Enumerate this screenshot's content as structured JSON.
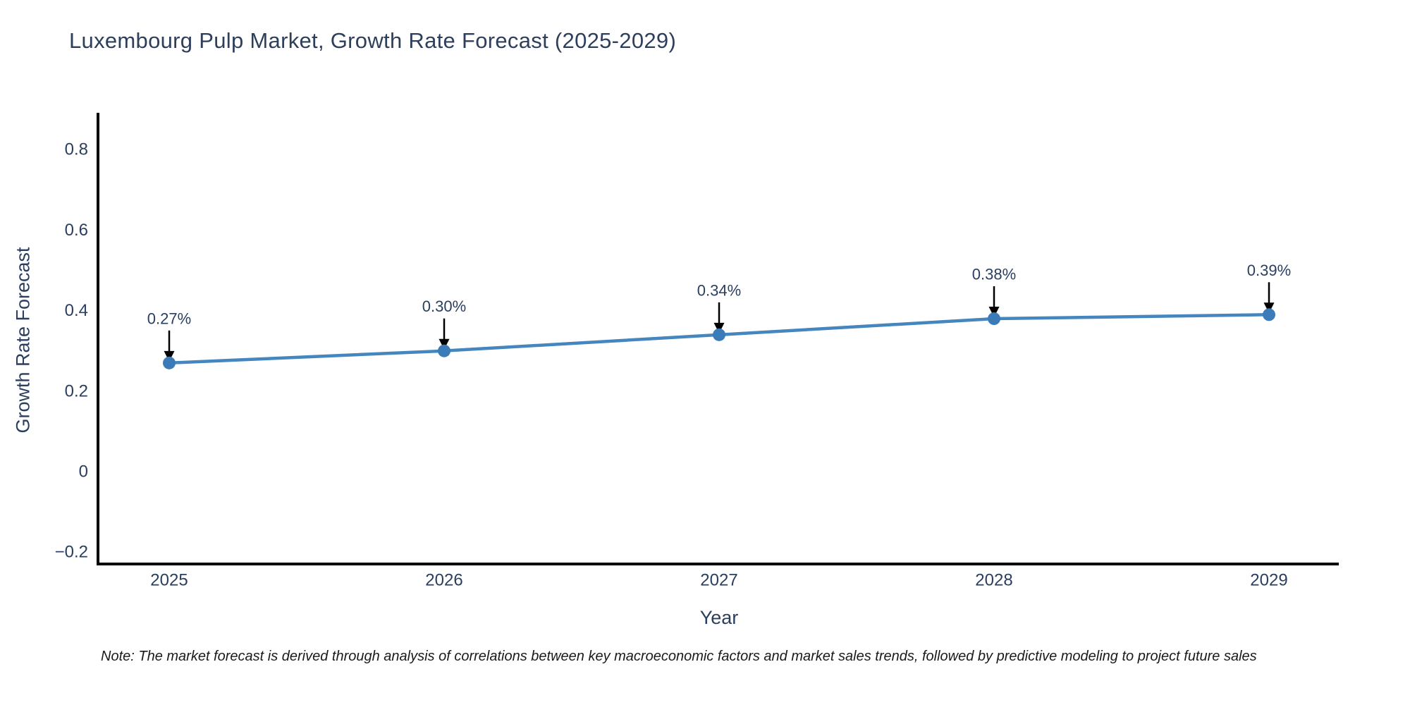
{
  "title": "Luxembourg Pulp Market, Growth Rate Forecast (2025-2029)",
  "footnote": "Note: The market forecast is derived through analysis of correlations between key macroeconomic factors and market sales trends, followed by predictive modeling to project future sales",
  "colors": {
    "line": "#4486bd",
    "marker": "#3b7cb8",
    "axis": "#000000",
    "arrow": "#000000",
    "chart_text": "#2a3f5f"
  },
  "chart_data": {
    "type": "line",
    "title": "Luxembourg Pulp Market, Growth Rate Forecast (2025-2029)",
    "categories": [
      "2025",
      "2026",
      "2027",
      "2028",
      "2029"
    ],
    "values": [
      0.27,
      0.3,
      0.34,
      0.38,
      0.39
    ],
    "point_labels": [
      "0.27%",
      "0.30%",
      "0.34%",
      "0.38%",
      "0.39%"
    ],
    "xlabel": "Year",
    "ylabel": "Growth Rate Forecast",
    "ylim": [
      -0.23,
      0.89
    ],
    "yticks": [
      0.8,
      0.6,
      0.4,
      0.2,
      0,
      -0.2
    ],
    "ytick_labels": [
      "0.8",
      "0.6",
      "0.4",
      "0.2",
      "0",
      "−0.2"
    ],
    "grid": false,
    "legend": "none",
    "annotation_style": "value label above point with downward black arrow"
  }
}
